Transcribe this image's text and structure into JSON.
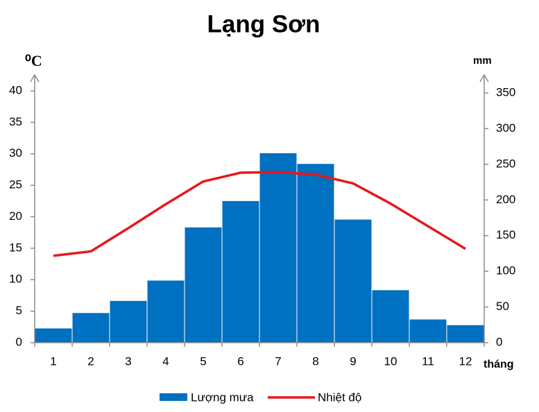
{
  "chart_data": {
    "type": "combo",
    "title": "Lạng Sơn",
    "y_label": "⁰C",
    "y2_label": "mm",
    "x_label": "tháng",
    "categories": [
      "1",
      "2",
      "3",
      "4",
      "5",
      "6",
      "7",
      "8",
      "9",
      "10",
      "11",
      "12"
    ],
    "series": [
      {
        "name": "Lượng mưa",
        "type": "bar",
        "axis": "y2",
        "color": "#0070c0",
        "values": [
          20.4,
          42,
          59,
          87.5,
          162,
          199,
          266,
          251,
          173,
          74,
          33,
          25
        ]
      },
      {
        "name": "Nhiệt độ",
        "type": "line",
        "color": "#e8161b",
        "values": [
          13.8,
          14.5,
          18.2,
          22.0,
          25.6,
          27.0,
          27.1,
          26.7,
          25.3,
          22.1,
          18.5,
          14.9
        ]
      }
    ],
    "ylim": [
      0,
      40
    ],
    "yticks": [
      0,
      5,
      10,
      15,
      20,
      25,
      30,
      35,
      40
    ],
    "y2lim": [
      0,
      350
    ],
    "y2ticks": [
      0,
      50,
      100,
      150,
      200,
      250,
      300,
      350
    ],
    "legend": "bottom"
  }
}
